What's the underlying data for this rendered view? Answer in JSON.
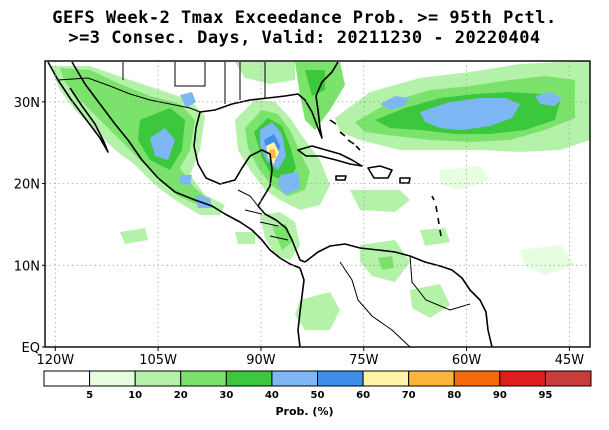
{
  "title": {
    "line1": "GEFS Week-2 Tmax Exceedance Prob. >= 95th Pctl.",
    "line2": ">=3 Consec. Days, Valid: 20211230 - 20220404"
  },
  "map": {
    "lat_labels": [
      "30N",
      "20N",
      "10N",
      "EQ"
    ],
    "lon_labels": [
      "120W",
      "105W",
      "90W",
      "75W",
      "60W",
      "45W"
    ],
    "lat_values": [
      30,
      20,
      10,
      0
    ],
    "lon_values": [
      -120,
      -105,
      -90,
      -75,
      -60,
      -45
    ],
    "extent": {
      "west": -121.5,
      "east": -42,
      "south": 0,
      "north": 35
    }
  },
  "colorbar": {
    "colors": [
      "#ffffff",
      "#e6fde0",
      "#b3f2a8",
      "#7be36c",
      "#3cc83c",
      "#7db8f5",
      "#3d8ee8",
      "#fff5a8",
      "#fdb43a",
      "#f56a0a",
      "#dc1e1e",
      "#c83c3c"
    ],
    "tick_labels": [
      "5",
      "10",
      "20",
      "30",
      "40",
      "50",
      "60",
      "70",
      "80",
      "90",
      "95"
    ],
    "units": "Prob. (%)"
  }
}
